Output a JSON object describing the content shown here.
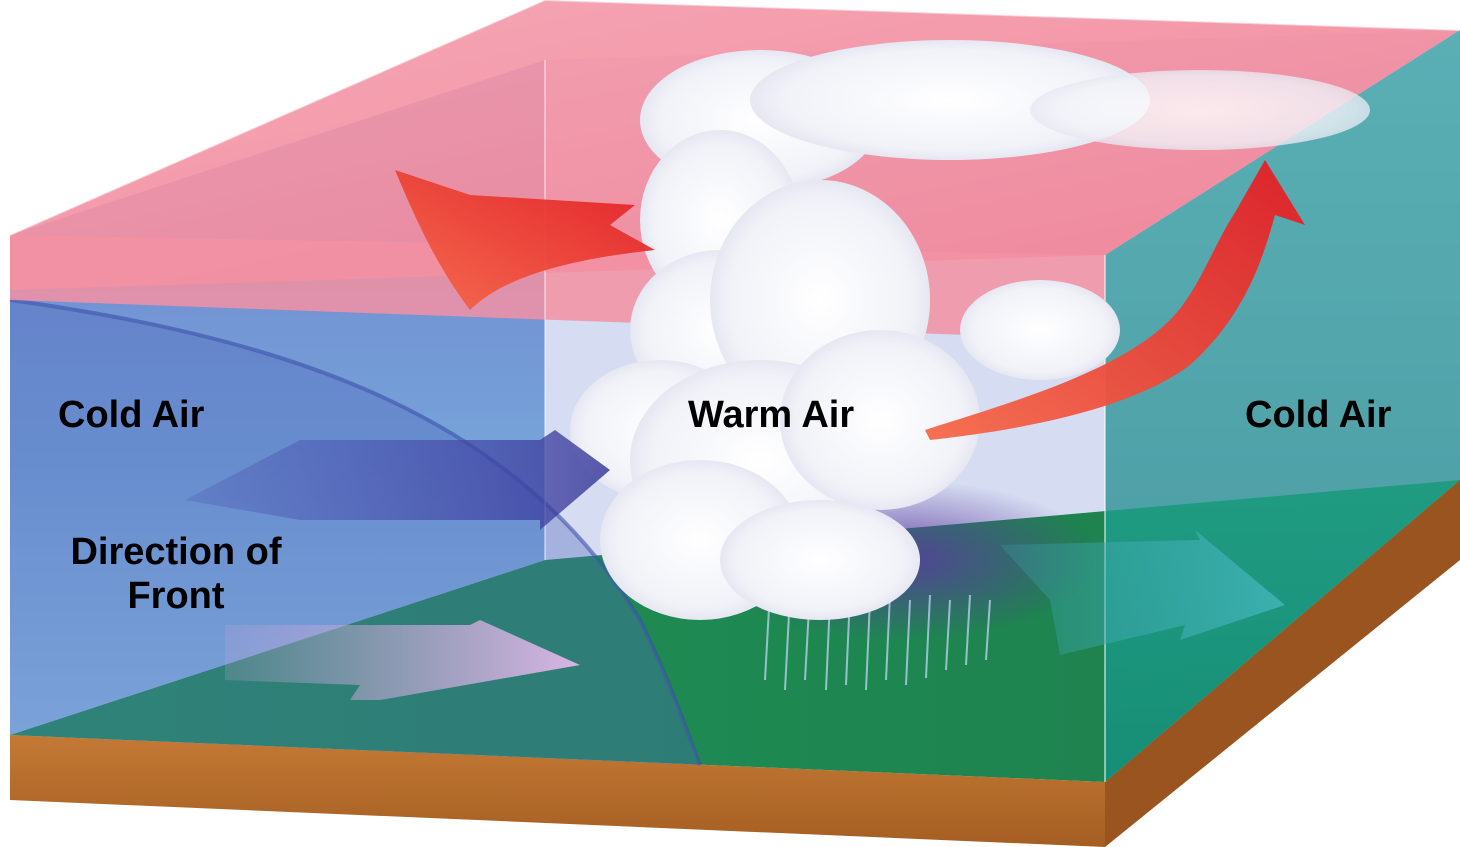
{
  "labels": {
    "cold_air_left": "Cold Air",
    "warm_air": "Warm Air",
    "cold_air_right": "Cold Air",
    "direction_line1": "Direction of",
    "direction_line2": "Front"
  },
  "colors": {
    "cold_air": "#5f78c8",
    "warm_air": "#f07e93",
    "ground": "#1f8a52",
    "soil": "#b86a2a",
    "warm_arrow": "#e8262b",
    "cloud": "#ffffff"
  }
}
